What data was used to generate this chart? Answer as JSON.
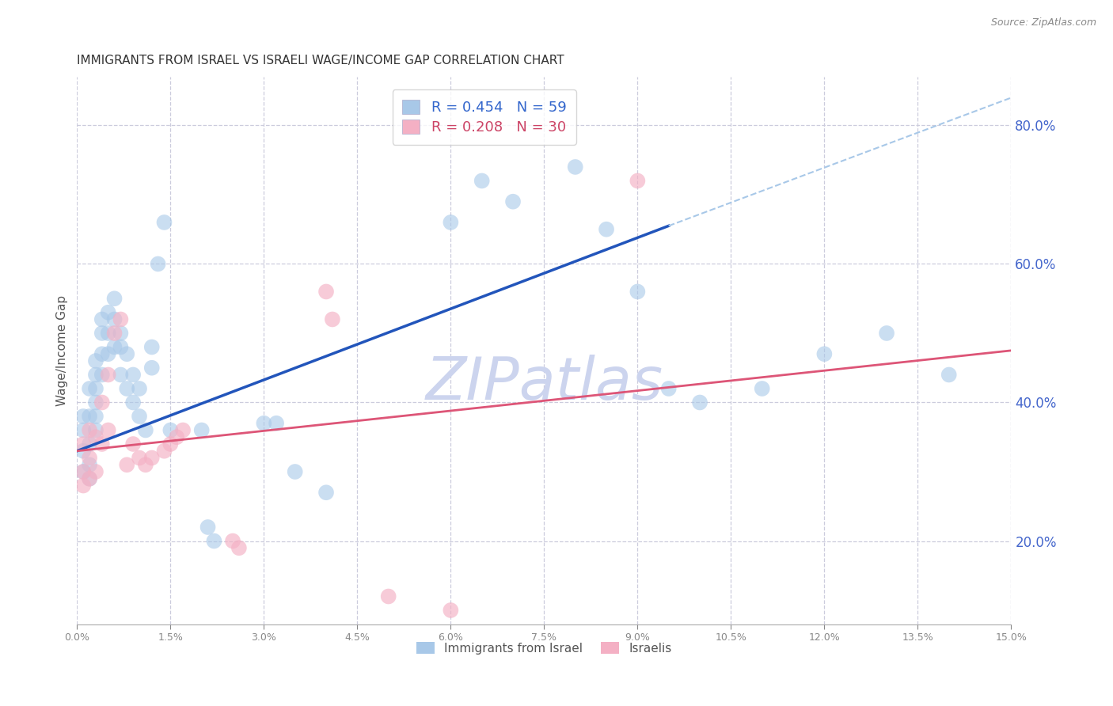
{
  "title": "IMMIGRANTS FROM ISRAEL VS ISRAELI WAGE/INCOME GAP CORRELATION CHART",
  "source": "Source: ZipAtlas.com",
  "ylabel": "Wage/Income Gap",
  "right_ytick_values": [
    0.2,
    0.4,
    0.6,
    0.8
  ],
  "legend_entries": [
    {
      "label": "Immigrants from Israel",
      "color": "#a8c8e8"
    },
    {
      "label": "Israelis",
      "color": "#f4b8c8"
    }
  ],
  "legend_r_n": [
    {
      "R": "0.454",
      "N": "59",
      "color": "#a8c8e8",
      "text_color": "#3366cc"
    },
    {
      "R": "0.208",
      "N": "30",
      "color": "#f4b8c8",
      "text_color": "#cc4466"
    }
  ],
  "blue_scatter_x": [
    0.001,
    0.001,
    0.001,
    0.001,
    0.002,
    0.002,
    0.002,
    0.002,
    0.002,
    0.003,
    0.003,
    0.003,
    0.003,
    0.003,
    0.003,
    0.004,
    0.004,
    0.004,
    0.004,
    0.005,
    0.005,
    0.005,
    0.006,
    0.006,
    0.006,
    0.007,
    0.007,
    0.007,
    0.008,
    0.008,
    0.009,
    0.009,
    0.01,
    0.01,
    0.011,
    0.012,
    0.012,
    0.013,
    0.014,
    0.015,
    0.02,
    0.021,
    0.022,
    0.03,
    0.032,
    0.035,
    0.04,
    0.06,
    0.065,
    0.07,
    0.08,
    0.085,
    0.09,
    0.095,
    0.1,
    0.11,
    0.12,
    0.13,
    0.14
  ],
  "blue_scatter_y": [
    0.33,
    0.3,
    0.36,
    0.38,
    0.34,
    0.31,
    0.38,
    0.42,
    0.29,
    0.36,
    0.38,
    0.4,
    0.42,
    0.44,
    0.46,
    0.47,
    0.5,
    0.52,
    0.44,
    0.5,
    0.53,
    0.47,
    0.52,
    0.55,
    0.48,
    0.5,
    0.48,
    0.44,
    0.47,
    0.42,
    0.44,
    0.4,
    0.42,
    0.38,
    0.36,
    0.45,
    0.48,
    0.6,
    0.66,
    0.36,
    0.36,
    0.22,
    0.2,
    0.37,
    0.37,
    0.3,
    0.27,
    0.66,
    0.72,
    0.69,
    0.74,
    0.65,
    0.56,
    0.42,
    0.4,
    0.42,
    0.47,
    0.5,
    0.44
  ],
  "pink_scatter_x": [
    0.001,
    0.001,
    0.001,
    0.002,
    0.002,
    0.002,
    0.003,
    0.003,
    0.004,
    0.004,
    0.005,
    0.005,
    0.006,
    0.007,
    0.008,
    0.009,
    0.01,
    0.011,
    0.012,
    0.014,
    0.015,
    0.016,
    0.017,
    0.025,
    0.026,
    0.04,
    0.041,
    0.05,
    0.06,
    0.09
  ],
  "pink_scatter_y": [
    0.3,
    0.34,
    0.28,
    0.32,
    0.36,
    0.29,
    0.35,
    0.3,
    0.4,
    0.34,
    0.44,
    0.36,
    0.5,
    0.52,
    0.31,
    0.34,
    0.32,
    0.31,
    0.32,
    0.33,
    0.34,
    0.35,
    0.36,
    0.2,
    0.19,
    0.56,
    0.52,
    0.12,
    0.1,
    0.72
  ],
  "blue_line_x": [
    0.0,
    0.095
  ],
  "blue_line_y": [
    0.33,
    0.655
  ],
  "blue_dash_line_x": [
    0.095,
    0.15
  ],
  "blue_dash_line_y": [
    0.655,
    0.84
  ],
  "pink_line_x": [
    0.0,
    0.15
  ],
  "pink_line_y": [
    0.33,
    0.475
  ],
  "xmin": 0.0,
  "xmax": 0.15,
  "ymin": 0.08,
  "ymax": 0.87,
  "title_color": "#333333",
  "source_color": "#888888",
  "scatter_blue_color": "#a8c8e8",
  "scatter_pink_color": "#f4b0c4",
  "line_blue_color": "#2255bb",
  "line_pink_color": "#dd5577",
  "grid_color": "#ccccdd",
  "bg_color": "#ffffff",
  "watermark_text": "ZIPatlas",
  "watermark_color": "#ccd4ee",
  "right_axis_label_color": "#4466cc",
  "bottom_legend_label_color": "#555555"
}
